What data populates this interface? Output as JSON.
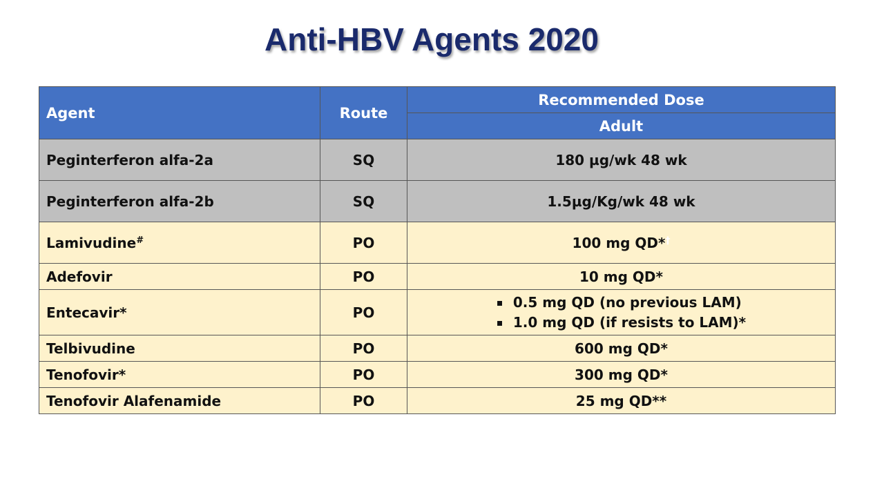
{
  "slide": {
    "title": "Anti-HBV Agents 2020"
  },
  "table": {
    "headers": {
      "agent": "Agent",
      "route": "Route",
      "dose_group": "Recommended Dose",
      "dose_sub": "Adult"
    },
    "rows": [
      {
        "agent": "Peginterferon alfa-2a",
        "agent_sup": "",
        "route": "SQ",
        "dose": "180 µg/wk 48 wk",
        "dose_mark": "",
        "group": "interferon"
      },
      {
        "agent": "Peginterferon alfa-2b",
        "agent_sup": "",
        "route": "SQ",
        "dose": "1.5µg/Kg/wk 48 wk",
        "dose_mark": "",
        "group": "interferon"
      },
      {
        "agent": "Lamivudine",
        "agent_sup": "#",
        "route": "PO",
        "dose": "100 mg QD*",
        "dose_mark": "†",
        "group": "nucleos"
      },
      {
        "agent": "Adefovir",
        "agent_sup": "",
        "route": "PO",
        "dose": "10 mg QD*",
        "dose_mark": "",
        "group": "nucleos"
      },
      {
        "agent": "Entecavir*",
        "agent_sup": "",
        "route": "PO",
        "dose_list": [
          "0.5 mg QD (no previous LAM)",
          "1.0 mg QD (if resists to LAM)*"
        ],
        "group": "nucleos"
      },
      {
        "agent": "Telbivudine",
        "agent_sup": "",
        "route": "PO",
        "dose": "600 mg QD*",
        "dose_mark": "",
        "group": "nucleos"
      },
      {
        "agent": "Tenofovir*",
        "agent_sup": "",
        "route": "PO",
        "dose": "300 mg QD*",
        "dose_mark": "",
        "group": "nucleos"
      },
      {
        "agent": "Tenofovir Alafenamide",
        "agent_sup": "",
        "route": "PO",
        "dose": "25 mg QD**",
        "dose_mark": "",
        "group": "nucleos"
      }
    ],
    "colors": {
      "header": "#4472c4",
      "interferon_rows": "#bfbfbf",
      "nucleos_rows": "#fef2cc",
      "title": "#1a2a6c"
    },
    "bullet_glyph": "▪"
  }
}
